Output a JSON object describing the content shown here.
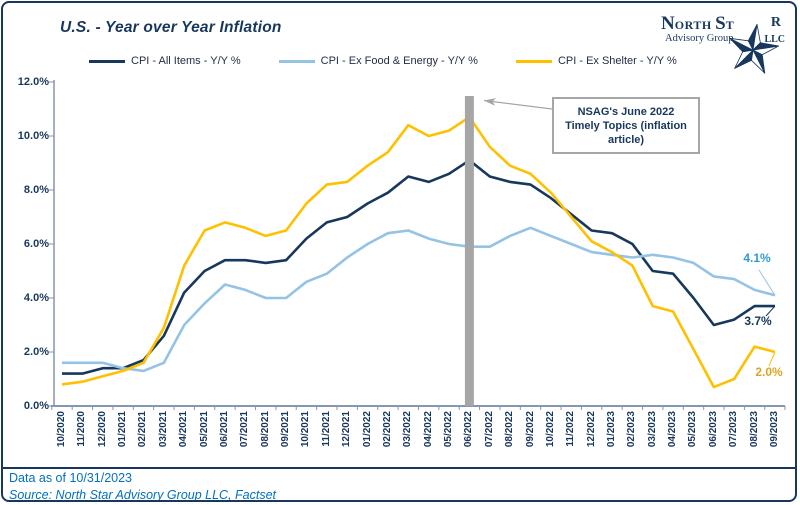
{
  "header": {
    "title": "U.S. - Year over Year Inflation"
  },
  "logo": {
    "name_n": "N",
    "name_orth": "orth",
    "name_s": "S",
    "name_t": "t",
    "name_r": "R",
    "tagline": "Advisory Group",
    "suffix": "LLC",
    "star_color": "#17375D"
  },
  "legend": {
    "items": [
      {
        "label": "CPI - All Items - Y/Y %",
        "color": "#17375D"
      },
      {
        "label": "CPI - Ex Food & Energy - Y/Y %",
        "color": "#94C3E4"
      },
      {
        "label": "CPI - Ex Shelter - Y/Y %",
        "color": "#FFC000"
      }
    ]
  },
  "chart_data": {
    "type": "line",
    "title": "U.S. - Year over Year Inflation",
    "xlabel": "",
    "ylabel": "",
    "ylim": [
      0,
      12
    ],
    "grid": false,
    "legend_position": "top",
    "yticks": [
      "12.0%",
      "10.0%",
      "8.0%",
      "6.0%",
      "4.0%",
      "2.0%",
      "0.0%"
    ],
    "x": [
      "10/2020",
      "11/2020",
      "12/2020",
      "01/2021",
      "02/2021",
      "03/2021",
      "04/2021",
      "05/2021",
      "06/2021",
      "07/2021",
      "08/2021",
      "09/2021",
      "10/2021",
      "11/2021",
      "12/2021",
      "01/2022",
      "02/2022",
      "03/2022",
      "04/2022",
      "05/2022",
      "06/2022",
      "07/2022",
      "08/2022",
      "09/2022",
      "10/2022",
      "11/2022",
      "12/2022",
      "01/2023",
      "02/2023",
      "03/2023",
      "04/2023",
      "05/2023",
      "06/2023",
      "07/2023",
      "08/2023",
      "09/2023"
    ],
    "series": [
      {
        "name": "CPI - All Items - Y/Y %",
        "color": "#17375D",
        "label_color": "#17375D",
        "end_label": "3.7%",
        "values": [
          1.2,
          1.2,
          1.4,
          1.4,
          1.7,
          2.6,
          4.2,
          5.0,
          5.4,
          5.4,
          5.3,
          5.4,
          6.2,
          6.8,
          7.0,
          7.5,
          7.9,
          8.5,
          8.3,
          8.6,
          9.1,
          8.5,
          8.3,
          8.2,
          7.7,
          7.1,
          6.5,
          6.4,
          6.0,
          5.0,
          4.9,
          4.0,
          3.0,
          3.2,
          3.7,
          3.7
        ]
      },
      {
        "name": "CPI - Ex Food & Energy - Y/Y %",
        "color": "#94C3E4",
        "label_color": "#2E9BD5",
        "end_label": "4.1%",
        "values": [
          1.6,
          1.6,
          1.6,
          1.4,
          1.3,
          1.6,
          3.0,
          3.8,
          4.5,
          4.3,
          4.0,
          4.0,
          4.6,
          4.9,
          5.5,
          6.0,
          6.4,
          6.5,
          6.2,
          6.0,
          5.9,
          5.9,
          6.3,
          6.6,
          6.3,
          6.0,
          5.7,
          5.6,
          5.5,
          5.6,
          5.5,
          5.3,
          4.8,
          4.7,
          4.3,
          4.1
        ]
      },
      {
        "name": "CPI - Ex Shelter - Y/Y %",
        "color": "#FFC000",
        "label_color": "#DDA32A",
        "end_label": "2.0%",
        "values": [
          0.8,
          0.9,
          1.1,
          1.3,
          1.6,
          2.9,
          5.2,
          6.5,
          6.8,
          6.6,
          6.3,
          6.5,
          7.5,
          8.2,
          8.3,
          8.9,
          9.4,
          10.4,
          10.0,
          10.2,
          10.7,
          9.6,
          8.9,
          8.6,
          7.9,
          7.0,
          6.1,
          5.7,
          5.2,
          3.7,
          3.5,
          2.1,
          0.7,
          1.0,
          2.2,
          2.0
        ]
      }
    ],
    "marker": {
      "x_label": "06/2022",
      "color": "#A6A6A6"
    },
    "annotation": {
      "lines": [
        "NSAG's June 2022",
        "Timely Topics (inflation",
        "article)"
      ]
    }
  },
  "footer": {
    "data_as_of": "Data as of 10/31/2023",
    "source": "Source: North Star Advisory Group LLC, Factset"
  },
  "colors": {
    "navy": "#17375D",
    "axis": "#8496B0",
    "marker_gray": "#A6A6A6",
    "footer_blue": "#0070C0"
  }
}
